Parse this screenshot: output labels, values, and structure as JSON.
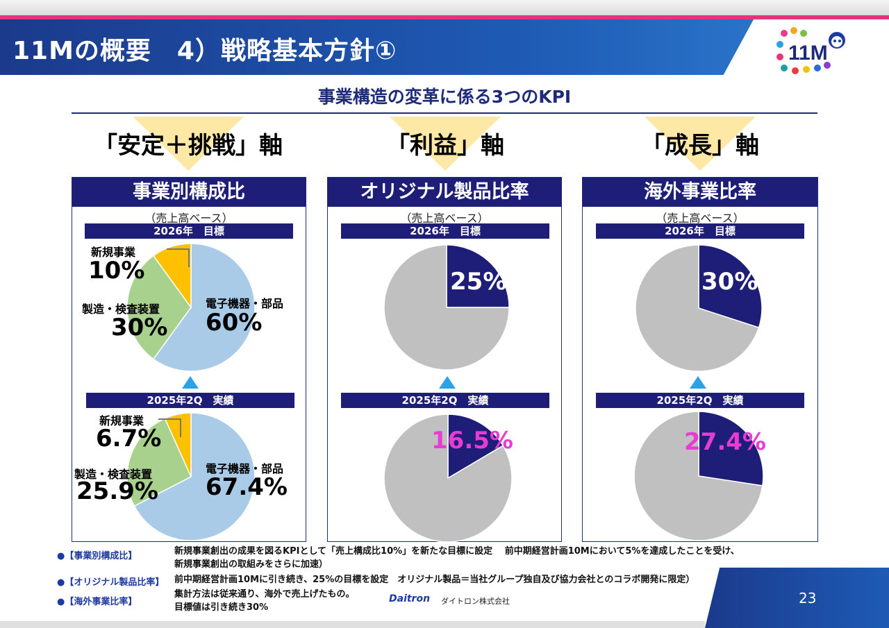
{
  "header": {
    "title": "11Mの概要　4）戦略基本方針①",
    "logo_text": "11M"
  },
  "subtitle": "事業構造の変革に係る3つのKPI",
  "axes": [
    {
      "label": "「安定＋挑戦」軸"
    },
    {
      "label": "「利益」軸"
    },
    {
      "label": "「成長」軸"
    }
  ],
  "panels": {
    "composition": {
      "title": "事業別構成比",
      "basis": "（売上高ベース）",
      "target_label": "2026年　目標",
      "actual_label": "2025年2Q　実績",
      "target": {
        "new_name": "新規事業",
        "new_val": "10%",
        "mfg_name": "製造・検査装置",
        "mfg_val": "30%",
        "elec_name": "電子機器・部品",
        "elec_val": "60%"
      },
      "actual": {
        "new_name": "新規事業",
        "new_val": "6.7%",
        "mfg_name": "製造・検査装置",
        "mfg_val": "25.9%",
        "elec_name": "電子機器・部品",
        "elec_val": "67.4%"
      }
    },
    "original": {
      "title": "オリジナル製品比率",
      "basis": "（売上高ベース）",
      "target_label": "2026年　目標",
      "actual_label": "2025年2Q　実績",
      "target_val": "25%",
      "actual_val": "16.5%"
    },
    "overseas": {
      "title": "海外事業比率",
      "basis": "（売上高ベース）",
      "target_label": "2026年　目標",
      "actual_label": "2025年2Q　実績",
      "target_val": "30%",
      "actual_val": "27.4%"
    }
  },
  "chart_data": [
    {
      "type": "pie",
      "title": "2026年　目標",
      "labels": [
        "電子機器・部品",
        "製造・検査装置",
        "新規事業"
      ],
      "values": [
        60,
        30,
        10
      ],
      "colors": [
        "#a9cbe8",
        "#a9d18e",
        "#ffc000"
      ]
    },
    {
      "type": "pie",
      "title": "2025年2Q　実績",
      "labels": [
        "電子機器・部品",
        "製造・検査装置",
        "新規事業"
      ],
      "values": [
        67.4,
        25.9,
        6.7
      ],
      "colors": [
        "#a9cbe8",
        "#a9d18e",
        "#ffc000"
      ]
    },
    {
      "type": "pie",
      "title": "2026年　目標",
      "labels": [
        "オリジナル製品",
        ""
      ],
      "values": [
        25,
        75
      ],
      "colors": [
        "#1e1e78",
        "#c0c0c0"
      ]
    },
    {
      "type": "pie",
      "title": "2025年2Q　実績",
      "labels": [
        "オリジナル製品",
        ""
      ],
      "values": [
        16.5,
        83.5
      ],
      "colors": [
        "#1e1e78",
        "#c0c0c0"
      ]
    },
    {
      "type": "pie",
      "title": "2026年　目標",
      "labels": [
        "海外事業",
        ""
      ],
      "values": [
        30,
        70
      ],
      "colors": [
        "#1e1e78",
        "#c0c0c0"
      ]
    },
    {
      "type": "pie",
      "title": "2025年2Q　実績",
      "labels": [
        "海外事業",
        ""
      ],
      "values": [
        27.4,
        72.6
      ],
      "colors": [
        "#1e1e78",
        "#c0c0c0"
      ]
    }
  ],
  "notes": [
    {
      "bullet": "●【事業別構成比】",
      "lines": [
        "新規事業創出の成果を図るKPIとして「売上構成比10%」を新たな目標に設定　 前中期経営計画10Mにおいて5%を達成したことを受け、",
        "新規事業創出の取組みをさらに加速）"
      ]
    },
    {
      "bullet": "●【オリジナル製品比率】",
      "lines": [
        "前中期経営計画10Mに引き続き、25%の目標を設定　オリジナル製品＝当社グループ独自及び協力会社とのコラボ開発に限定）"
      ]
    },
    {
      "bullet": "●【海外事業比率】",
      "lines": [
        "集計方法は従来通り、海外で売上げたもの。",
        "目標値は引き続き30%"
      ]
    }
  ],
  "footer": {
    "company": "Daitron",
    "company_sub": "ダイトロン株式会社",
    "page_number": "23"
  }
}
